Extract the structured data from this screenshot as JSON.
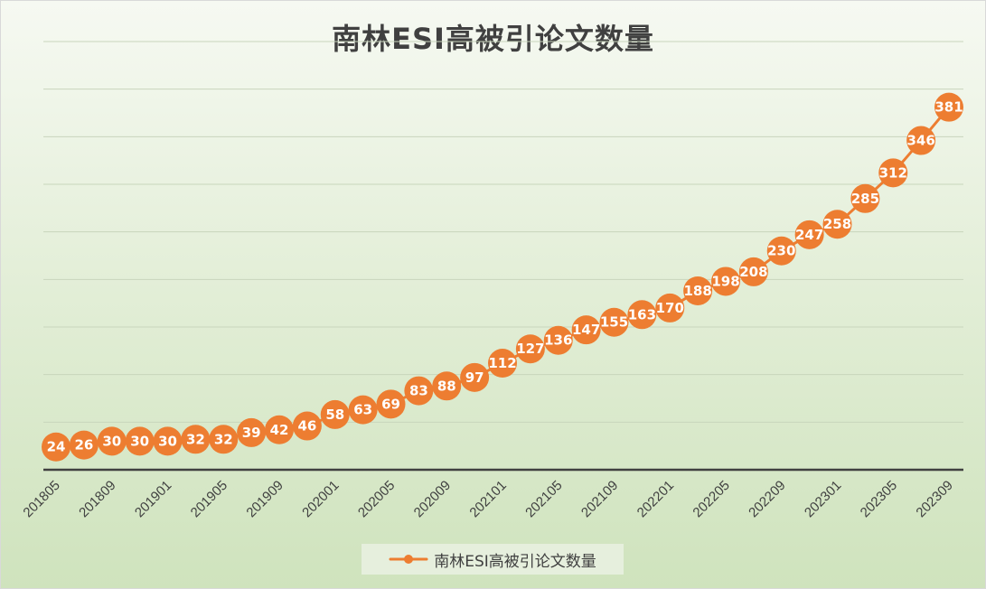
{
  "chart_data": {
    "type": "line",
    "title": "南林ESI高被引论文数量",
    "xlabel": "",
    "ylabel": "",
    "x": [
      "201805",
      "201807",
      "201809",
      "201811",
      "201901",
      "201903",
      "201905",
      "201907",
      "201909",
      "201911",
      "202001",
      "202003",
      "202005",
      "202007",
      "202009",
      "202011",
      "202101",
      "202103",
      "202105",
      "202107",
      "202109",
      "202111",
      "202201",
      "202203",
      "202205",
      "202207",
      "202209",
      "202211",
      "202301",
      "202303",
      "202305",
      "202307",
      "202309"
    ],
    "tick_labels": [
      "201805",
      "201809",
      "201901",
      "201905",
      "201909",
      "202001",
      "202005",
      "202009",
      "202101",
      "202105",
      "202109",
      "202201",
      "202205",
      "202209",
      "202301",
      "202305",
      "202309"
    ],
    "series": [
      {
        "name": "南林ESI高被引论文数量",
        "values": [
          24,
          26,
          30,
          30,
          30,
          32,
          32,
          39,
          42,
          46,
          58,
          63,
          69,
          83,
          88,
          97,
          112,
          127,
          136,
          147,
          155,
          163,
          170,
          188,
          198,
          208,
          230,
          247,
          258,
          285,
          312,
          346,
          381
        ]
      }
    ],
    "ylim": [
      0,
      450
    ],
    "grid": true,
    "legend_position": "bottom",
    "data_labels": true,
    "colors": {
      "series": "#ed7d31",
      "label_text": "#ffffff",
      "grid": "#c8d5bc",
      "axis": "#404040"
    }
  }
}
